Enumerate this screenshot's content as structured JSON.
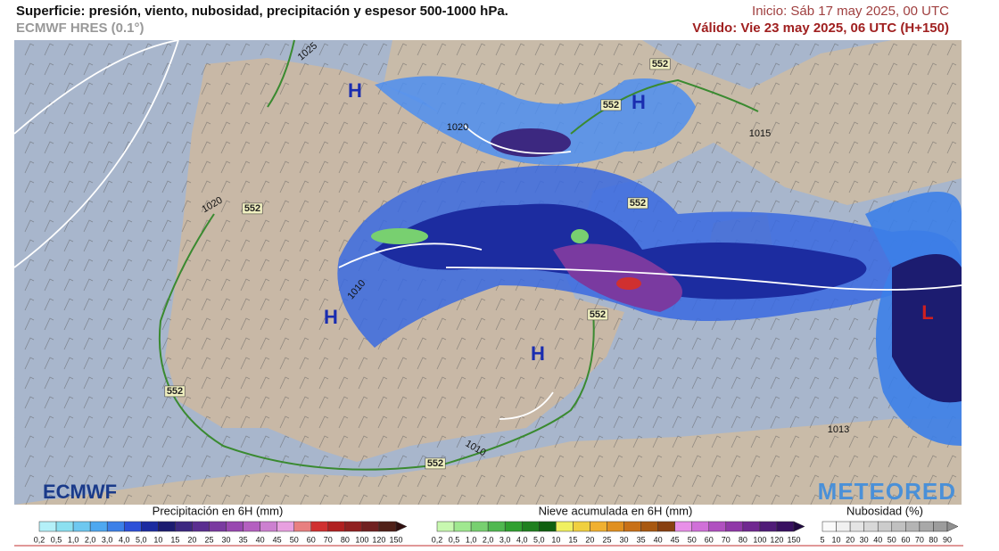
{
  "header": {
    "title": "Superficie: presión, viento, nubosidad, precipitación y espesor 500-1000 hPa.",
    "model": "ECMWF HRES (0.1°)",
    "init": "Inicio: Sáb 17 may 2025, 00 UTC",
    "valid": "Válido: Vie 23 may 2025, 06 UTC (H+150)"
  },
  "map": {
    "pressure_centers": [
      "H",
      "H",
      "H",
      "H",
      "L"
    ],
    "isobar_labels": [
      "1025",
      "1020",
      "1020",
      "1015",
      "1010",
      "1010",
      "1013"
    ],
    "thickness_labels": [
      "552",
      "552",
      "552",
      "552",
      "552",
      "552",
      "552"
    ]
  },
  "logos": {
    "left": "ECMWF",
    "right": "METEORED"
  },
  "legends": [
    {
      "title": "Precipitación en 6H (mm)",
      "labels": [
        "0,2",
        "0,5",
        "1,0",
        "2,0",
        "3,0",
        "4,0",
        "5,0",
        "10",
        "15",
        "20",
        "25",
        "30",
        "35",
        "40",
        "45",
        "50",
        "60",
        "70",
        "80",
        "100",
        "120",
        "150"
      ],
      "colors": [
        "#b4f0f8",
        "#8ce0f0",
        "#6ec8f0",
        "#4ea8f0",
        "#3c80e8",
        "#2c50d8",
        "#1c2ca0",
        "#1c1c70",
        "#3c2880",
        "#5a2e90",
        "#7a3aa0",
        "#9848b0",
        "#b460c0",
        "#cc80d0",
        "#e8a0e0",
        "#e88080",
        "#d03030",
        "#b02020",
        "#902020",
        "#702020",
        "#502018",
        "#301010"
      ]
    },
    {
      "title": "Nieve acumulada en 6H (mm)",
      "labels": [
        "0,2",
        "0,5",
        "1,0",
        "2,0",
        "3,0",
        "4,0",
        "5,0",
        "10",
        "15",
        "20",
        "25",
        "30",
        "35",
        "40",
        "45",
        "50",
        "60",
        "70",
        "80",
        "100",
        "120",
        "150"
      ],
      "colors": [
        "#c8f8b0",
        "#a0e890",
        "#78d070",
        "#50b850",
        "#30a030",
        "#208020",
        "#106010",
        "#f0f060",
        "#f0d040",
        "#f0b030",
        "#e09020",
        "#c87018",
        "#a85810",
        "#884010",
        "#e890e8",
        "#d070d8",
        "#b050c0",
        "#9038a8",
        "#702890",
        "#501c78",
        "#381060",
        "#200840"
      ]
    },
    {
      "title": "Nubosidad (%)",
      "labels": [
        "5",
        "10",
        "20",
        "30",
        "40",
        "50",
        "60",
        "70",
        "80",
        "90"
      ],
      "colors": [
        "#fafafa",
        "#f0f0f0",
        "#e4e4e4",
        "#d8d8d8",
        "#cccccc",
        "#c0c0c0",
        "#b4b4b4",
        "#a8a8a8",
        "#9c9c9c",
        "#909090"
      ]
    }
  ]
}
